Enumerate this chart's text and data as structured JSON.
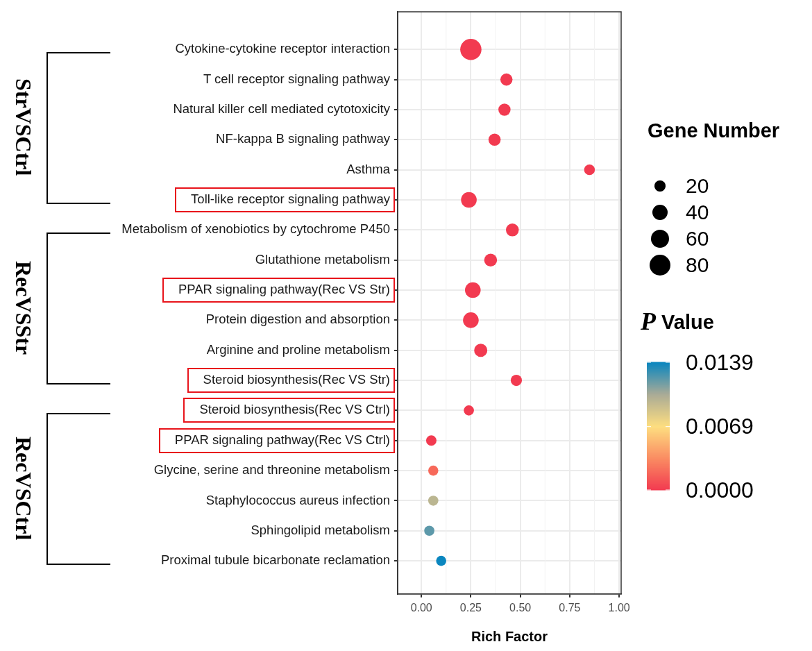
{
  "chart_data": {
    "type": "bubble",
    "orientation": "horizontal",
    "categories": [
      "Cytokine-cytokine receptor interaction",
      "T cell receptor signaling pathway",
      "Natural killer cell mediated cytotoxicity",
      "NF-kappa B signaling pathway",
      "Asthma",
      "Toll-like receptor signaling pathway",
      "Metabolism of xenobiotics by cytochrome P450",
      "Glutathione metabolism",
      "PPAR signaling pathway(Rec VS Str)",
      "Protein digestion and absorption",
      "Arginine and proline metabolism",
      "Steroid biosynthesis(Rec VS Str)",
      "Steroid biosynthesis(Rec VS Ctrl)",
      "PPAR signaling pathway(Rec VS Ctrl)",
      "Glycine, serine and threonine metabolism",
      "Staphylococcus aureus infection",
      "Sphingolipid metabolism",
      "Proximal tubule bicarbonate reclamation"
    ],
    "values": [
      0.25,
      0.43,
      0.42,
      0.37,
      0.85,
      0.24,
      0.46,
      0.35,
      0.26,
      0.25,
      0.3,
      0.48,
      0.24,
      0.05,
      0.06,
      0.06,
      0.04,
      0.1
    ],
    "sizes": [
      79,
      26,
      26,
      26,
      20,
      43,
      29,
      29,
      43,
      43,
      30,
      22,
      18,
      19,
      18,
      18,
      18,
      18
    ],
    "size_legend": [
      20,
      40,
      60,
      80
    ],
    "cvalues": [
      0,
      0,
      0,
      0,
      0,
      0,
      0,
      0,
      0,
      0,
      0,
      0,
      0,
      0,
      0.002,
      0.0097,
      0.0121,
      0.0139
    ],
    "clim": [
      0,
      0.0139
    ],
    "cticks": [
      {
        "value": 0,
        "label": "0.0000"
      },
      {
        "value": 0.0069,
        "label": "0.0069"
      },
      {
        "value": 0.0139,
        "label": "0.0139"
      }
    ],
    "xlim": [
      -0.12,
      1.01
    ],
    "xticks": [
      {
        "value": 0,
        "label": "0.00"
      },
      {
        "value": 0.25,
        "label": "0.25"
      },
      {
        "value": 0.5,
        "label": "0.50"
      },
      {
        "value": 0.75,
        "label": "0.75"
      },
      {
        "value": 1,
        "label": "1.00"
      }
    ],
    "xlabel": "Rich Factor",
    "legend_title": "Gene Number",
    "clabel": "P Value",
    "grid": true,
    "marker": "circle",
    "annotations": [
      "StrVSCtrl",
      "RecVSStr",
      "RecVSCtrl"
    ]
  }
}
